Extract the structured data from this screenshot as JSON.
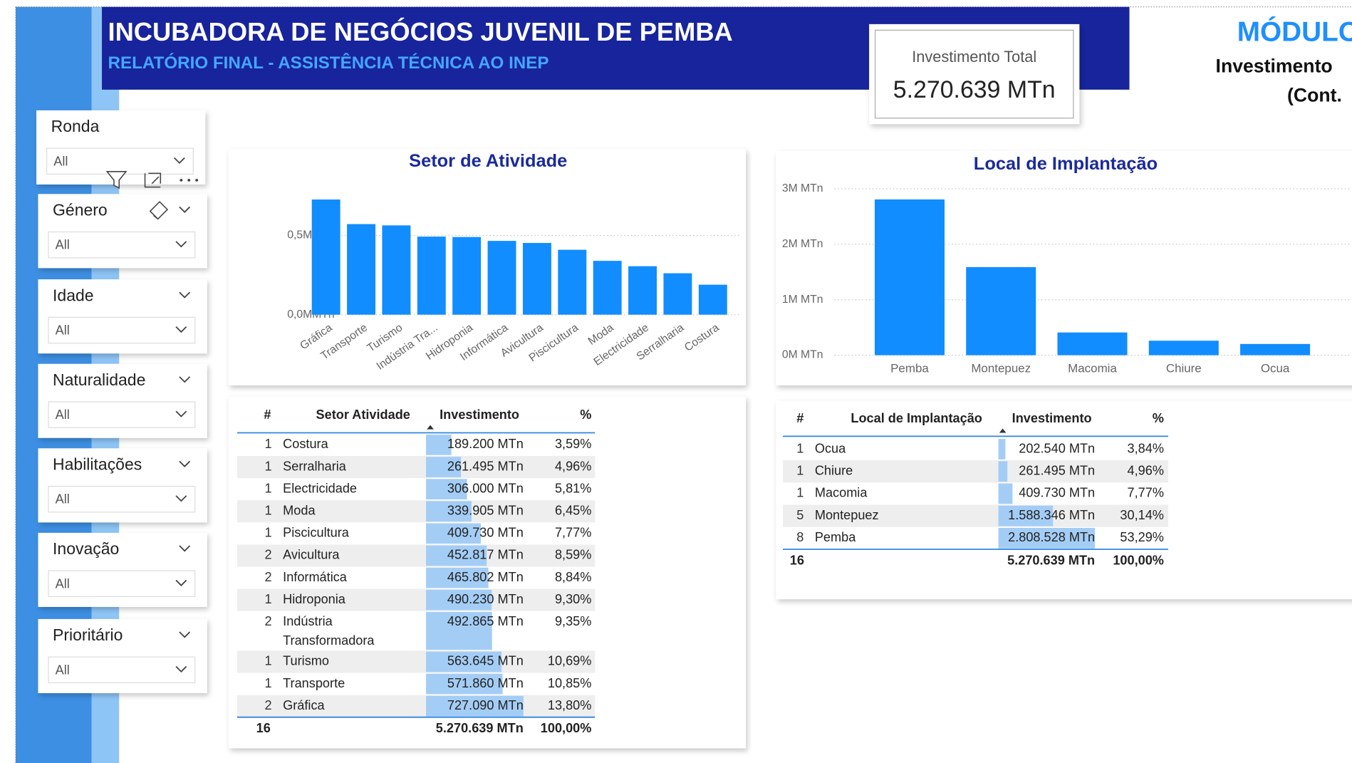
{
  "header": {
    "title": "INCUBADORA DE NEGÓCIOS JUVENIL DE PEMBA",
    "subtitle": "RELATÓRIO FINAL - ASSISTÊNCIA TÉCNICA AO INEP"
  },
  "kpi": {
    "label": "Investimento Total",
    "value": "5.270.639 MTn"
  },
  "module": {
    "title": "MÓDULO",
    "line1": "Investimento",
    "line2": "(Cont."
  },
  "slicers": [
    {
      "title": "Ronda",
      "value": "All"
    },
    {
      "title": "Género",
      "value": "All"
    },
    {
      "title": "Idade",
      "value": "All"
    },
    {
      "title": "Naturalidade",
      "value": "All"
    },
    {
      "title": "Habilitações",
      "value": "All"
    },
    {
      "title": "Inovação",
      "value": "All"
    },
    {
      "title": "Prioritário",
      "value": "All"
    }
  ],
  "chart_data": [
    {
      "type": "bar",
      "title": "Setor de Atividade",
      "categories": [
        "Gráfica",
        "Transporte",
        "Turismo",
        "Indústria Tra...",
        "Hidroponia",
        "Informática",
        "Avicultura",
        "Piscicultura",
        "Moda",
        "Electricidade",
        "Serralharia",
        "Costura"
      ],
      "values": [
        727090,
        571860,
        563645,
        492865,
        490230,
        465802,
        452817,
        409730,
        339905,
        306000,
        261495,
        189200
      ],
      "color": "#118dff",
      "ylim": [
        0,
        800000
      ],
      "yticks": [
        {
          "value": 0,
          "label": "0,0MMTn"
        },
        {
          "value": 500000,
          "label": "0,5MMTn"
        }
      ],
      "grid": true
    },
    {
      "type": "bar",
      "title": "Local de Implantação",
      "categories": [
        "Pemba",
        "Montepuez",
        "Macomia",
        "Chiure",
        "Ocua"
      ],
      "values": [
        2808528,
        1588346,
        409730,
        261495,
        202540
      ],
      "color": "#118dff",
      "ylim": [
        0,
        3000000
      ],
      "yticks": [
        {
          "value": 0,
          "label": "0M MTn"
        },
        {
          "value": 1000000,
          "label": "1M MTn"
        },
        {
          "value": 2000000,
          "label": "2M MTn"
        },
        {
          "value": 3000000,
          "label": "3M MTn"
        }
      ],
      "grid": true
    }
  ],
  "tables": [
    {
      "columns": [
        "#",
        "Setor Atividade",
        "Investimento",
        "%"
      ],
      "rows": [
        [
          "1",
          "Costura",
          "189.200 MTn",
          "3,59%"
        ],
        [
          "1",
          "Serralharia",
          "261.495 MTn",
          "4,96%"
        ],
        [
          "1",
          "Electricidade",
          "306.000 MTn",
          "5,81%"
        ],
        [
          "1",
          "Moda",
          "339.905 MTn",
          "6,45%"
        ],
        [
          "1",
          "Piscicultura",
          "409.730 MTn",
          "7,77%"
        ],
        [
          "2",
          "Avicultura",
          "452.817 MTn",
          "8,59%"
        ],
        [
          "2",
          "Informática",
          "465.802 MTn",
          "8,84%"
        ],
        [
          "1",
          "Hidroponia",
          "490.230 MTn",
          "9,30%"
        ],
        [
          "2",
          "Indústria Transformadora",
          "492.865 MTn",
          "9,35%"
        ],
        [
          "1",
          "Turismo",
          "563.645 MTn",
          "10,69%"
        ],
        [
          "1",
          "Transporte",
          "571.860 MTn",
          "10,85%"
        ],
        [
          "2",
          "Gráfica",
          "727.090 MTn",
          "13,80%"
        ]
      ],
      "total": [
        "16",
        "5.270.639 MTn",
        "100,00%"
      ]
    },
    {
      "columns": [
        "#",
        "Local de Implantação",
        "Investimento",
        "%"
      ],
      "rows": [
        [
          "1",
          "Ocua",
          "202.540 MTn",
          "3,84%"
        ],
        [
          "1",
          "Chiure",
          "261.495 MTn",
          "4,96%"
        ],
        [
          "1",
          "Macomia",
          "409.730 MTn",
          "7,77%"
        ],
        [
          "5",
          "Montepuez",
          "1.588.346 MTn",
          "30,14%"
        ],
        [
          "8",
          "Pemba",
          "2.808.528 MTn",
          "53,29%"
        ]
      ],
      "total": [
        "16",
        "5.270.639 MTn",
        "100,00%"
      ]
    }
  ]
}
